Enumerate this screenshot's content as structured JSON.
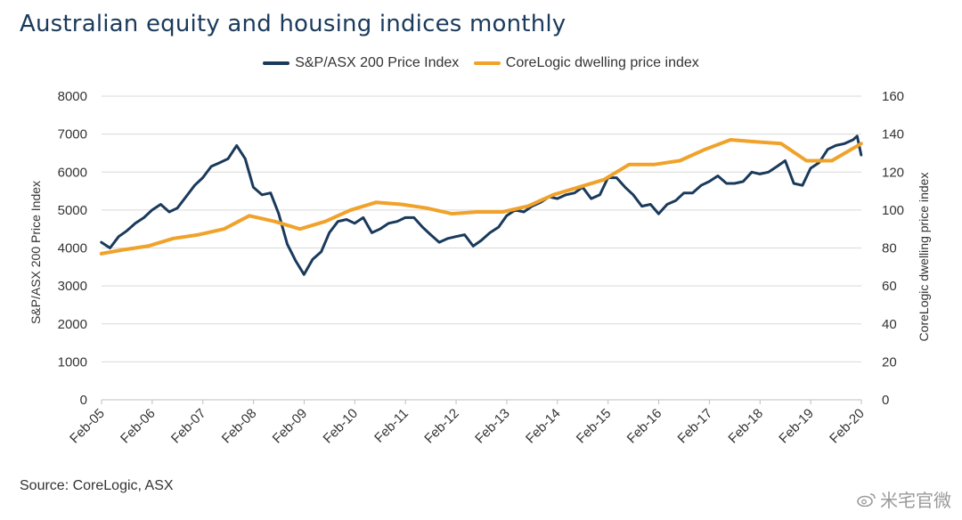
{
  "title": "Australian equity and housing indices monthly",
  "source": "Source: CoreLogic, ASX",
  "watermark": "米宅官微",
  "colors": {
    "equity": "#1a3a5c",
    "housing": "#f0a22a",
    "grid": "#d9d9d9"
  },
  "chart_data": {
    "type": "line",
    "title": "Australian equity and housing indices monthly",
    "ylabel_left": "S&P/ASX 200 Price Index",
    "ylabel_right": "CoreLogic dwelling price index",
    "ylim_left": [
      0,
      8000
    ],
    "ylim_right": [
      0,
      160
    ],
    "yticks_left": [
      "0",
      "1000",
      "2000",
      "3000",
      "4000",
      "5000",
      "6000",
      "7000",
      "8000"
    ],
    "yticks_right": [
      "0",
      "20",
      "40",
      "60",
      "80",
      "100",
      "120",
      "140",
      "160"
    ],
    "xlim": [
      2005.083,
      2020.083
    ],
    "xticks": [
      "Feb-05",
      "Feb-06",
      "Feb-07",
      "Feb-08",
      "Feb-09",
      "Feb-10",
      "Feb-11",
      "Feb-12",
      "Feb-13",
      "Feb-14",
      "Feb-15",
      "Feb-16",
      "Feb-17",
      "Feb-18",
      "Feb-19",
      "Feb-20"
    ],
    "legend_position": "top-center",
    "grid": true,
    "series": [
      {
        "name": "S&P/ASX 200 Price Index",
        "axis": "left",
        "x": [
          2005.08,
          2005.25,
          2005.42,
          2005.58,
          2005.75,
          2005.92,
          2006.08,
          2006.25,
          2006.42,
          2006.58,
          2006.75,
          2006.92,
          2007.08,
          2007.25,
          2007.42,
          2007.58,
          2007.75,
          2007.92,
          2008.08,
          2008.25,
          2008.42,
          2008.58,
          2008.75,
          2008.92,
          2009.08,
          2009.25,
          2009.42,
          2009.58,
          2009.75,
          2009.92,
          2010.08,
          2010.25,
          2010.42,
          2010.58,
          2010.75,
          2010.92,
          2011.08,
          2011.25,
          2011.42,
          2011.58,
          2011.75,
          2011.92,
          2012.08,
          2012.25,
          2012.42,
          2012.58,
          2012.75,
          2012.92,
          2013.08,
          2013.25,
          2013.42,
          2013.58,
          2013.75,
          2013.92,
          2014.08,
          2014.25,
          2014.42,
          2014.58,
          2014.75,
          2014.92,
          2015.08,
          2015.25,
          2015.42,
          2015.58,
          2015.75,
          2015.92,
          2016.08,
          2016.25,
          2016.42,
          2016.58,
          2016.75,
          2016.92,
          2017.08,
          2017.25,
          2017.42,
          2017.58,
          2017.75,
          2017.92,
          2018.08,
          2018.25,
          2018.42,
          2018.58,
          2018.75,
          2018.92,
          2019.08,
          2019.25,
          2019.42,
          2019.58,
          2019.75,
          2019.92,
          2020.0,
          2020.08
        ],
        "values": [
          4150,
          4000,
          4300,
          4450,
          4650,
          4800,
          5000,
          5150,
          4950,
          5050,
          5350,
          5650,
          5850,
          6150,
          6250,
          6350,
          6700,
          6350,
          5600,
          5400,
          5450,
          4900,
          4100,
          3650,
          3300,
          3700,
          3900,
          4400,
          4700,
          4750,
          4650,
          4800,
          4400,
          4500,
          4650,
          4700,
          4800,
          4800,
          4550,
          4350,
          4150,
          4250,
          4300,
          4350,
          4050,
          4200,
          4400,
          4550,
          4850,
          5000,
          4950,
          5100,
          5200,
          5350,
          5300,
          5400,
          5450,
          5600,
          5300,
          5400,
          5850,
          5850,
          5600,
          5400,
          5100,
          5150,
          4900,
          5150,
          5250,
          5450,
          5450,
          5650,
          5750,
          5900,
          5700,
          5700,
          5750,
          6000,
          5950,
          6000,
          6150,
          6300,
          5700,
          5650,
          6100,
          6250,
          6600,
          6700,
          6750,
          6850,
          6950,
          6450
        ]
      },
      {
        "name": "CoreLogic dwelling price index",
        "axis": "right",
        "x": [
          2005.08,
          2005.5,
          2006.0,
          2006.5,
          2007.0,
          2007.5,
          2008.0,
          2008.5,
          2009.0,
          2009.5,
          2010.0,
          2010.5,
          2011.0,
          2011.5,
          2012.0,
          2012.5,
          2013.0,
          2013.5,
          2014.0,
          2014.5,
          2015.0,
          2015.5,
          2016.0,
          2016.5,
          2017.0,
          2017.5,
          2018.0,
          2018.5,
          2019.0,
          2019.5,
          2020.08
        ],
        "values": [
          77,
          79,
          81,
          85,
          87,
          90,
          97,
          94,
          90,
          94,
          100,
          104,
          103,
          101,
          98,
          99,
          99,
          102,
          108,
          112,
          116,
          124,
          124,
          126,
          132,
          137,
          136,
          135,
          126,
          126,
          135
        ]
      }
    ]
  }
}
